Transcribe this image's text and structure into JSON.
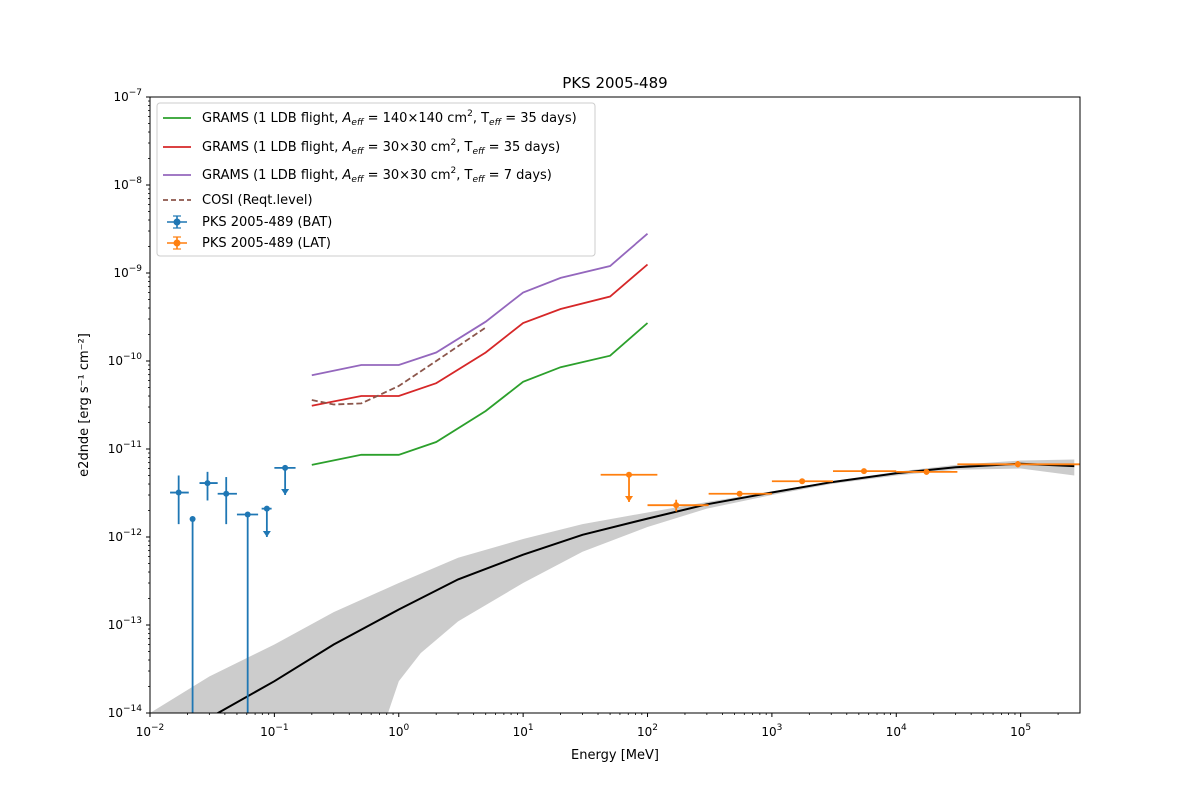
{
  "chart_data": {
    "type": "line",
    "title": "PKS 2005-489",
    "xlabel": "Energy [MeV]",
    "ylabel": "e2dnde [erg s⁻¹ cm⁻²]",
    "xscale": "log",
    "yscale": "log",
    "xlim": [
      0.01,
      300000
    ],
    "ylim": [
      1e-14,
      1e-07
    ],
    "grid": false,
    "legend_position": "top-left",
    "x_ticks": [
      {
        "value": 0.01,
        "base": "10",
        "exp": "−2"
      },
      {
        "value": 0.1,
        "base": "10",
        "exp": "−1"
      },
      {
        "value": 1,
        "base": "10",
        "exp": "0"
      },
      {
        "value": 10,
        "base": "10",
        "exp": "1"
      },
      {
        "value": 100,
        "base": "10",
        "exp": "2"
      },
      {
        "value": 1000,
        "base": "10",
        "exp": "3"
      },
      {
        "value": 10000,
        "base": "10",
        "exp": "4"
      },
      {
        "value": 100000,
        "base": "10",
        "exp": "5"
      }
    ],
    "y_ticks": [
      {
        "value": 1e-14,
        "base": "10",
        "exp": "−14"
      },
      {
        "value": 1e-13,
        "base": "10",
        "exp": "−13"
      },
      {
        "value": 1e-12,
        "base": "10",
        "exp": "−12"
      },
      {
        "value": 1e-11,
        "base": "10",
        "exp": "−11"
      },
      {
        "value": 1e-10,
        "base": "10",
        "exp": "−10"
      },
      {
        "value": 1e-09,
        "base": "10",
        "exp": "−9"
      },
      {
        "value": 1e-08,
        "base": "10",
        "exp": "−8"
      },
      {
        "value": 1e-07,
        "base": "10",
        "exp": "−7"
      }
    ],
    "lines": [
      {
        "name": "GRAMS (1 LDB flight, Aeff = 140×140 cm², Teff = 35 days)",
        "color": "#2ca02c",
        "dashed": false,
        "x": [
          0.2,
          0.5,
          1,
          2,
          5,
          10,
          20,
          50,
          100
        ],
        "y": [
          6.6e-12,
          8.6e-12,
          8.6e-12,
          1.2e-11,
          2.7e-11,
          5.8e-11,
          8.5e-11,
          1.15e-10,
          2.7e-10
        ]
      },
      {
        "name": "GRAMS (1 LDB flight, Aeff = 30×30 cm², Teff = 35 days)",
        "color": "#d62728",
        "dashed": false,
        "x": [
          0.2,
          0.5,
          1,
          2,
          5,
          10,
          20,
          50,
          100
        ],
        "y": [
          3.1e-11,
          4e-11,
          4e-11,
          5.6e-11,
          1.25e-10,
          2.7e-10,
          3.9e-10,
          5.4e-10,
          1.25e-09
        ]
      },
      {
        "name": "GRAMS (1 LDB flight, Aeff = 30×30 cm², Teff = 7 days)",
        "color": "#9467bd",
        "dashed": false,
        "x": [
          0.2,
          0.5,
          1,
          2,
          5,
          10,
          20,
          50,
          100
        ],
        "y": [
          6.9e-11,
          9e-11,
          9e-11,
          1.25e-10,
          2.8e-10,
          6e-10,
          8.8e-10,
          1.2e-09,
          2.8e-09
        ]
      },
      {
        "name": "COSI (Reqt.level)",
        "color": "#8c564b",
        "dashed": true,
        "x": [
          0.2,
          0.3,
          0.5,
          1,
          2,
          5
        ],
        "y": [
          3.6e-11,
          3.2e-11,
          3.3e-11,
          5.2e-11,
          1e-10,
          2.4e-10
        ]
      }
    ],
    "errorbar_series": [
      {
        "name": "PKS 2005-489 (BAT)",
        "color": "#1f77b4",
        "points": [
          {
            "x": 0.017,
            "xlo": 0.0145,
            "xhi": 0.0205,
            "y": 3.2e-12,
            "ylo": 1.4e-12,
            "yhi": 5e-12
          },
          {
            "x": 0.022,
            "xlo": 0.022,
            "xhi": 0.022,
            "y": 1.6e-12,
            "ylo": 1e-14,
            "yhi": 1.6e-12
          },
          {
            "x": 0.029,
            "xlo": 0.025,
            "xhi": 0.035,
            "y": 4.1e-12,
            "ylo": 2.6e-12,
            "yhi": 5.5e-12
          },
          {
            "x": 0.041,
            "xlo": 0.035,
            "xhi": 0.05,
            "y": 3.1e-12,
            "ylo": 1.4e-12,
            "yhi": 4.8e-12
          },
          {
            "x": 0.061,
            "xlo": 0.05,
            "xhi": 0.074,
            "y": 1.8e-12,
            "ylo": 1e-14,
            "yhi": 1.8e-12
          },
          {
            "x": 0.087,
            "xlo": 0.079,
            "xhi": 0.095,
            "y": 2.1e-12,
            "upper_limit": true,
            "ul_to": 1e-12
          },
          {
            "x": 0.122,
            "xlo": 0.1,
            "xhi": 0.148,
            "y": 6.1e-12,
            "upper_limit": true,
            "ul_to": 3e-12
          }
        ]
      },
      {
        "name": "PKS 2005-489 (LAT)",
        "color": "#ff7f0e",
        "points": [
          {
            "x": 71,
            "xlo": 42,
            "xhi": 120,
            "y": 5.1e-12,
            "upper_limit": true,
            "ul_to": 2.5e-12
          },
          {
            "x": 170,
            "xlo": 100,
            "xhi": 310,
            "y": 2.3e-12,
            "ylo": 1.95e-12,
            "yhi": 2.65e-12
          },
          {
            "x": 550,
            "xlo": 310,
            "xhi": 1000,
            "y": 3.1e-12,
            "ylo": 2.95e-12,
            "yhi": 3.25e-12
          },
          {
            "x": 1750,
            "xlo": 1000,
            "xhi": 3100,
            "y": 4.3e-12,
            "ylo": 4.1e-12,
            "yhi": 4.5e-12
          },
          {
            "x": 5500,
            "xlo": 3100,
            "xhi": 10000,
            "y": 5.6e-12,
            "ylo": 5.3e-12,
            "yhi": 5.9e-12
          },
          {
            "x": 17500,
            "xlo": 10000,
            "xhi": 31000,
            "y": 5.5e-12,
            "ylo": 5.1e-12,
            "yhi": 5.9e-12
          },
          {
            "x": 95000,
            "xlo": 31000,
            "xhi": 300000,
            "y": 6.7e-12,
            "ylo": 6.2e-12,
            "yhi": 7.3e-12
          }
        ]
      }
    ],
    "model": {
      "color": "#000000",
      "band_color": "#cccccc",
      "x": [
        0.01,
        0.03,
        0.1,
        0.3,
        1,
        3,
        10,
        30,
        100,
        300,
        1000,
        3000,
        10000,
        30000,
        100000,
        270000
      ],
      "y": [
        3.5e-15,
        8.8e-15,
        2.3e-14,
        6e-14,
        1.5e-13,
        3.3e-13,
        6.3e-13,
        1.06e-12,
        1.62e-12,
        2.35e-12,
        3.2e-12,
        4.2e-12,
        5.3e-12,
        6.2e-12,
        6.8e-12,
        6.4e-12
      ],
      "band_upper": [
        1e-14,
        2.6e-14,
        6e-14,
        1.4e-13,
        3e-13,
        5.8e-13,
        9.5e-13,
        1.4e-12,
        1.9e-12,
        2.5e-12,
        3.3e-12,
        4.3e-12,
        5.5e-12,
        6.6e-12,
        7.4e-12,
        7.6e-12
      ],
      "band_lower_x": [
        0.82,
        1,
        1.5,
        3,
        10,
        30,
        100,
        300,
        1000,
        3000,
        10000,
        30000,
        100000,
        270000
      ],
      "band_lower_y": [
        1e-14,
        2.3e-14,
        4.8e-14,
        1.1e-13,
        3e-13,
        6.8e-13,
        1.3e-12,
        2.1e-12,
        3e-12,
        4e-12,
        5e-12,
        5.8e-12,
        6e-12,
        5e-12
      ]
    },
    "legend": [
      {
        "kind": "line",
        "color": "#2ca02c",
        "dashed": false,
        "pre": "GRAMS (1 LDB flight, ",
        "a": "A",
        "asub": "eff",
        "aval": " = 140×140 cm",
        "asup": "2",
        "t": ", T",
        "tsub": "eff",
        "tval": " = 35 days)"
      },
      {
        "kind": "line",
        "color": "#d62728",
        "dashed": false,
        "pre": "GRAMS (1 LDB flight, ",
        "a": "A",
        "asub": "eff",
        "aval": " = 30×30 cm",
        "asup": "2",
        "t": ", T",
        "tsub": "eff",
        "tval": " = 35 days)"
      },
      {
        "kind": "line",
        "color": "#9467bd",
        "dashed": false,
        "pre": "GRAMS (1 LDB flight, ",
        "a": "A",
        "asub": "eff",
        "aval": " = 30×30 cm",
        "asup": "2",
        "t": ", T",
        "tsub": "eff",
        "tval": " = 7 days)"
      },
      {
        "kind": "line",
        "color": "#8c564b",
        "dashed": true,
        "text": "COSI (Reqt.level)"
      },
      {
        "kind": "errorbar",
        "color": "#1f77b4",
        "text": "PKS 2005-489 (BAT)"
      },
      {
        "kind": "errorbar",
        "color": "#ff7f0e",
        "text": "PKS 2005-489 (LAT)"
      }
    ]
  }
}
